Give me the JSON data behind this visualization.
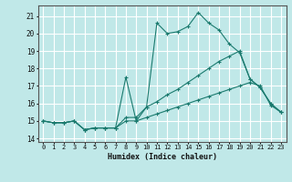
{
  "xlabel": "Humidex (Indice chaleur)",
  "background_color": "#c0e8e8",
  "grid_color": "#ffffff",
  "line_color": "#1a7a6e",
  "xlim": [
    -0.5,
    23.5
  ],
  "ylim": [
    13.8,
    21.6
  ],
  "yticks": [
    14,
    15,
    16,
    17,
    18,
    19,
    20,
    21
  ],
  "xticks": [
    0,
    1,
    2,
    3,
    4,
    5,
    6,
    7,
    8,
    9,
    10,
    11,
    12,
    13,
    14,
    15,
    16,
    17,
    18,
    19,
    20,
    21,
    22,
    23
  ],
  "series": [
    {
      "x": [
        0,
        1,
        2,
        3,
        4,
        5,
        6,
        7,
        8,
        9,
        10,
        11,
        12,
        13,
        14,
        15,
        16,
        17,
        18,
        19,
        20,
        21,
        22,
        23
      ],
      "y": [
        15.0,
        14.9,
        14.9,
        15.0,
        14.5,
        14.6,
        14.6,
        14.6,
        17.5,
        15.0,
        15.8,
        20.6,
        20.0,
        20.1,
        20.4,
        21.2,
        20.6,
        20.2,
        19.4,
        18.9,
        17.4,
        16.9,
        16.0,
        15.5
      ]
    },
    {
      "x": [
        0,
        1,
        2,
        3,
        4,
        5,
        6,
        7,
        8,
        9,
        10,
        11,
        12,
        13,
        14,
        15,
        16,
        17,
        18,
        19,
        20,
        21,
        22,
        23
      ],
      "y": [
        15.0,
        14.9,
        14.9,
        15.0,
        14.5,
        14.6,
        14.6,
        14.6,
        15.2,
        15.2,
        15.8,
        16.1,
        16.5,
        16.8,
        17.2,
        17.6,
        18.0,
        18.4,
        18.7,
        19.0,
        17.4,
        16.9,
        16.0,
        15.5
      ]
    },
    {
      "x": [
        0,
        1,
        2,
        3,
        4,
        5,
        6,
        7,
        8,
        9,
        10,
        11,
        12,
        13,
        14,
        15,
        16,
        17,
        18,
        19,
        20,
        21,
        22,
        23
      ],
      "y": [
        15.0,
        14.9,
        14.9,
        15.0,
        14.5,
        14.6,
        14.6,
        14.6,
        15.0,
        15.0,
        15.2,
        15.4,
        15.6,
        15.8,
        16.0,
        16.2,
        16.4,
        16.6,
        16.8,
        17.0,
        17.2,
        17.0,
        15.9,
        15.5
      ]
    }
  ]
}
